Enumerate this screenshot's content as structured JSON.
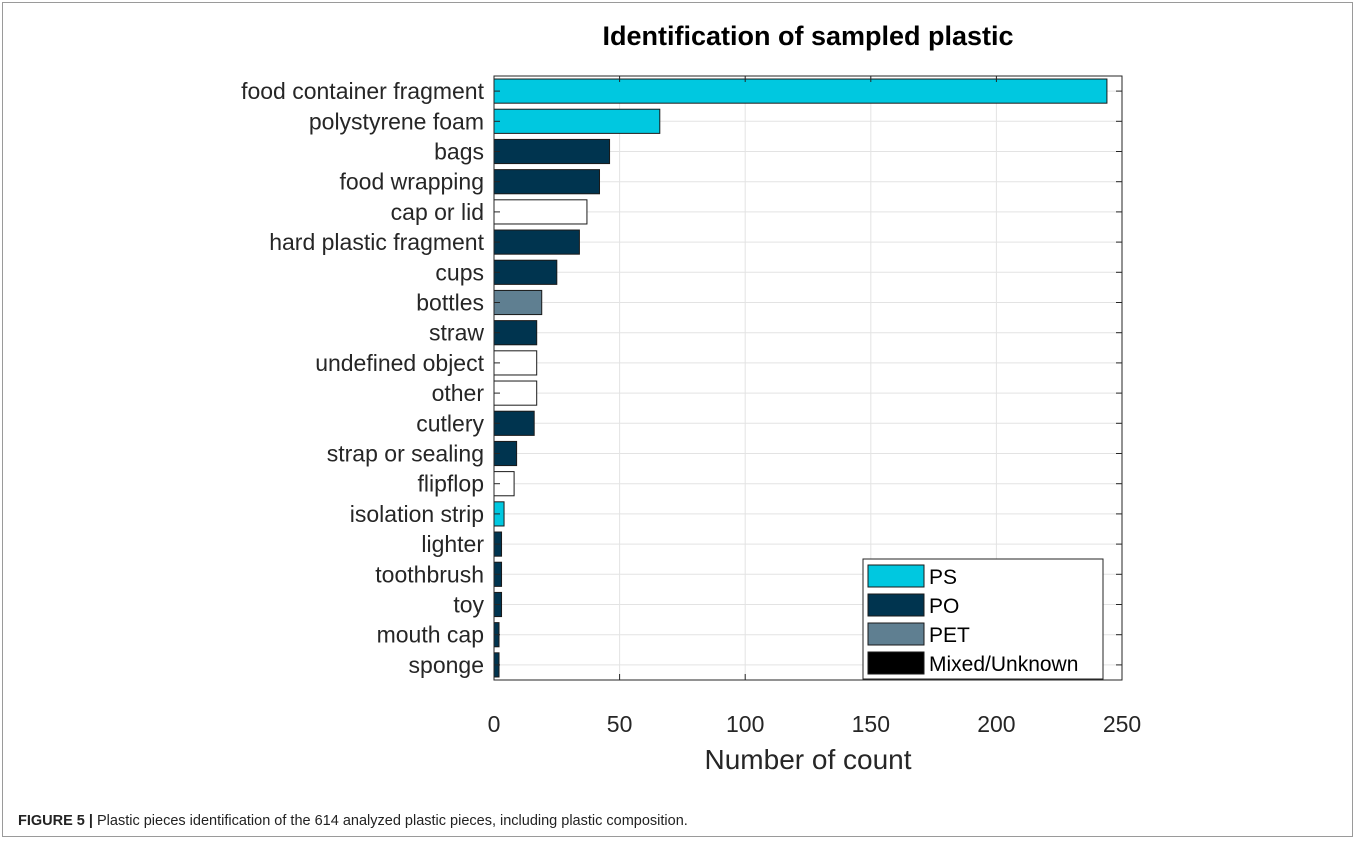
{
  "caption": {
    "label": "FIGURE 5 |",
    "text": " Plastic pieces identification of the 614 analyzed plastic pieces, including plastic composition."
  },
  "chart_data": {
    "type": "bar",
    "orientation": "horizontal",
    "title": "Identification of sampled plastic",
    "xlabel": "Number of count",
    "ylabel": "",
    "xlim": [
      0,
      250
    ],
    "xticks": [
      0,
      50,
      100,
      150,
      200,
      250
    ],
    "grid": true,
    "legend_position": "bottom-right",
    "legend": [
      {
        "name": "PS",
        "color": "#00c8e0"
      },
      {
        "name": "PO",
        "color": "#00344f"
      },
      {
        "name": "PET",
        "color": "#5f7f91"
      },
      {
        "name": "Mixed/Unknown",
        "color": "#000000"
      }
    ],
    "categories": [
      "food container fragment",
      "polystyrene foam",
      "bags",
      "food wrapping",
      "cap or lid",
      "hard plastic fragment",
      "cups",
      "bottles",
      "straw",
      "undefined object",
      "other",
      "cutlery",
      "strap or sealing",
      "flipflop",
      "isolation strip",
      "lighter",
      "toothbrush",
      "toy",
      "mouth cap",
      "sponge"
    ],
    "values": [
      244,
      66,
      46,
      42,
      37,
      34,
      25,
      19,
      17,
      17,
      17,
      16,
      9,
      8,
      4,
      3,
      3,
      3,
      2,
      2
    ],
    "composition": [
      "PS",
      "PS",
      "PO",
      "PO",
      "Mixed/Unknown",
      "PO",
      "PO",
      "PET",
      "PO",
      "Mixed/Unknown",
      "Mixed/Unknown",
      "PO",
      "PO",
      "Mixed/Unknown",
      "PS",
      "PO",
      "PO",
      "PO",
      "PO",
      "PO"
    ],
    "bar_fill_by_composition": {
      "PS": "#00c8e0",
      "PO": "#00344f",
      "PET": "#5f7f91",
      "Mixed/Unknown": "#ffffff"
    }
  }
}
